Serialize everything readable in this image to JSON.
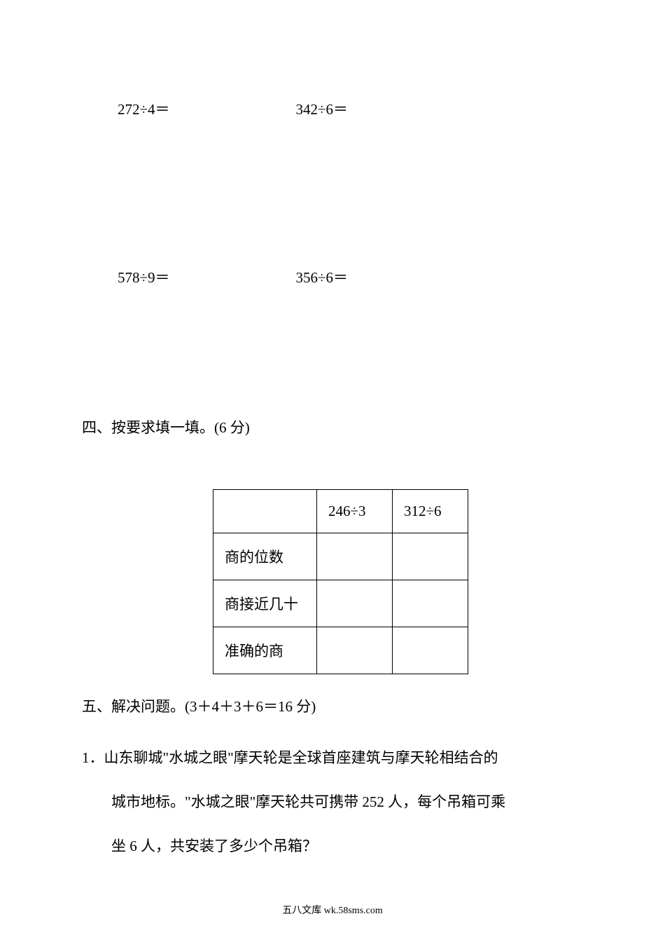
{
  "equations": {
    "row1": {
      "left": "272÷4＝",
      "right": "342÷6＝"
    },
    "row2": {
      "left": "578÷9＝",
      "right": "356÷6＝"
    }
  },
  "section_four": {
    "heading": "四、按要求填一填。(6 分)",
    "table": {
      "header": {
        "col1": "",
        "col2": "246÷3",
        "col3": "312÷6"
      },
      "rows": [
        {
          "label": "商的位数",
          "val1": "",
          "val2": ""
        },
        {
          "label": "商接近几十",
          "val1": "",
          "val2": ""
        },
        {
          "label": "准确的商",
          "val1": "",
          "val2": ""
        }
      ]
    }
  },
  "section_five": {
    "heading": "五、解决问题。(3＋4＋3＋6＝16 分)",
    "q1": {
      "line1": "1．山东聊城\"水城之眼\"摩天轮是全球首座建筑与摩天轮相结合的",
      "line2": "城市地标。\"水城之眼\"摩天轮共可携带 252 人，每个吊箱可乘",
      "line3": "坐 6 人，共安装了多少个吊箱？"
    }
  },
  "footer": "五八文库 wk.58sms.com"
}
